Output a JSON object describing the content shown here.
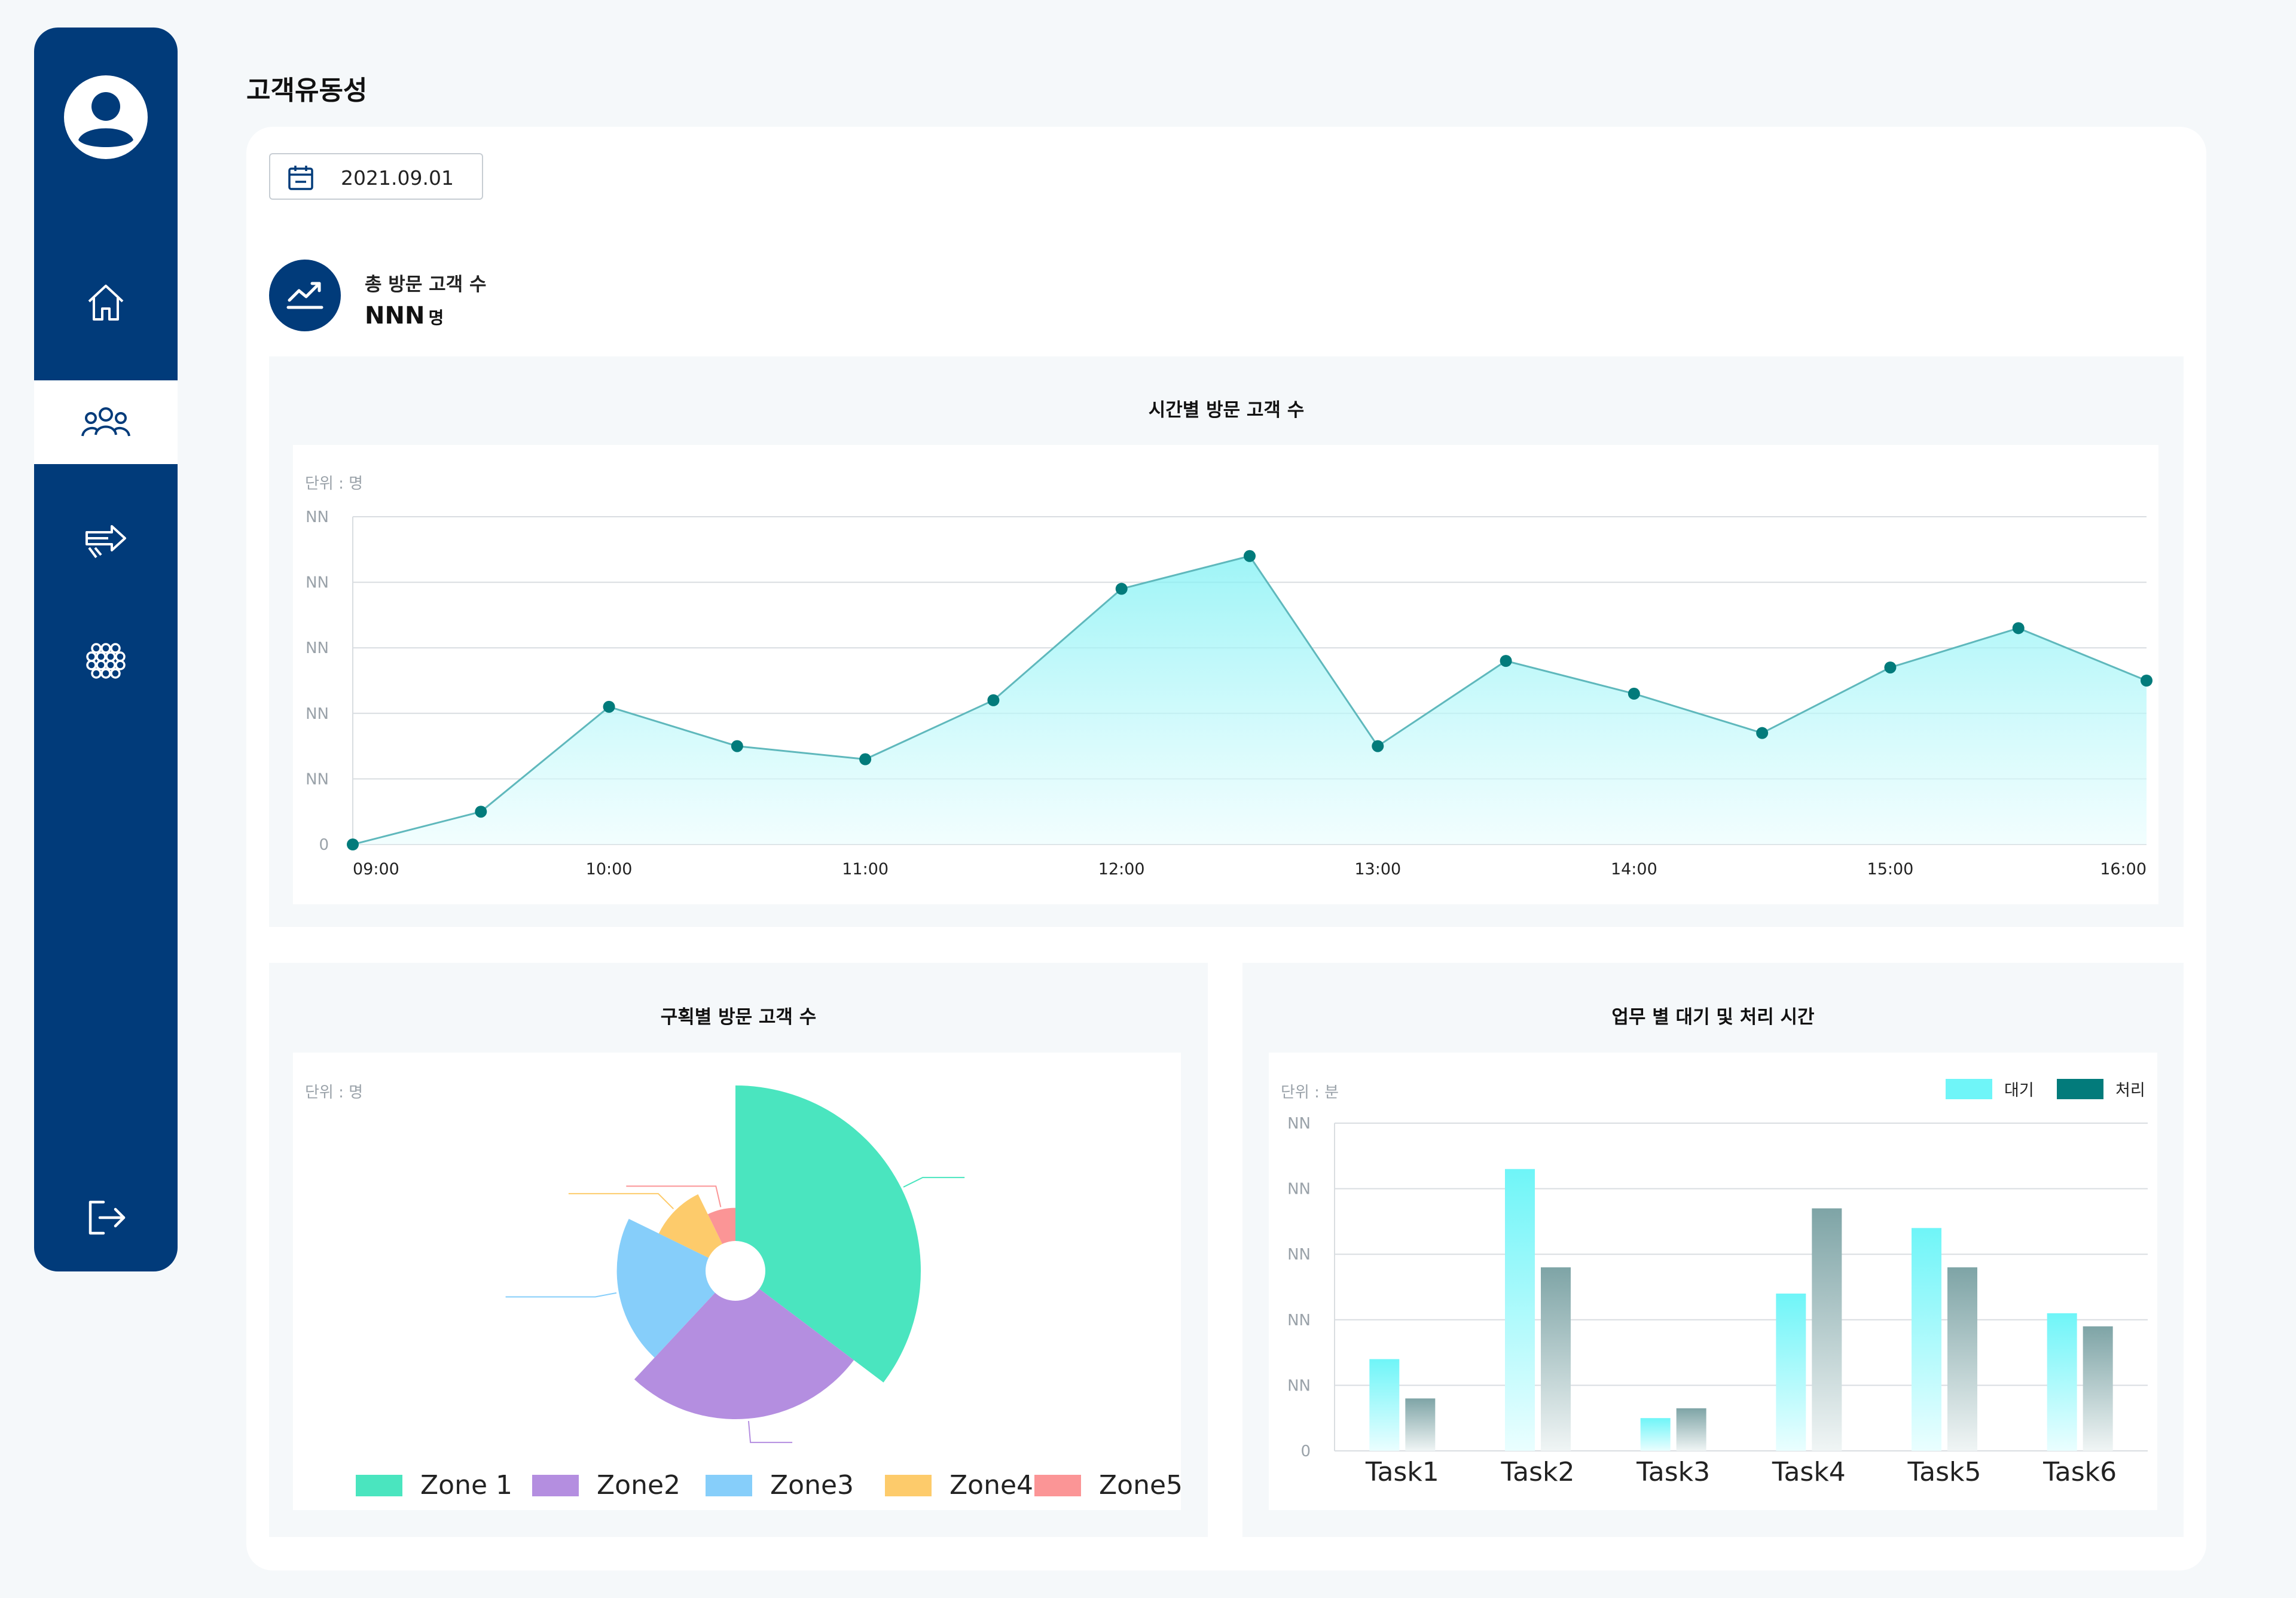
{
  "page": {
    "title": "고객유동성"
  },
  "date": {
    "value": "2021.09.01"
  },
  "summary": {
    "label": "총 방문 고객 수",
    "value": "NNN",
    "unit": "명"
  },
  "colors": {
    "navy": "#013b7a",
    "teal": "#027b7b",
    "cyan": "#6ff5f8"
  },
  "sidebar": {
    "items": [
      {
        "icon": "home-icon",
        "active": false
      },
      {
        "icon": "people-icon",
        "active": true
      },
      {
        "icon": "arrows-icon",
        "active": false
      },
      {
        "icon": "cells-icon",
        "active": false
      },
      {
        "icon": "logout-icon",
        "active": false
      }
    ]
  },
  "line_panel": {
    "title": "시간별 방문 고객 수",
    "unit": "단위 : 명"
  },
  "pie_panel": {
    "title": "구획별 방문 고객 수",
    "unit": "단위 : 명"
  },
  "bar_panel": {
    "title": "업무 별 대기 및 처리 시간",
    "unit": "단위 : 분"
  },
  "chart_data": [
    {
      "type": "area",
      "title": "시간별 방문 고객 수",
      "unit": "단위 : 명",
      "ytick_labels": [
        "0",
        "NN",
        "NN",
        "NN",
        "NN",
        "NN"
      ],
      "xtick_labels": [
        "09:00",
        "10:00",
        "11:00",
        "12:00",
        "13:00",
        "14:00",
        "15:00",
        "16:00"
      ],
      "x": [
        9.0,
        9.5,
        10.0,
        10.5,
        11.0,
        11.5,
        12.0,
        12.5,
        13.0,
        13.5,
        14.0,
        14.5,
        15.0,
        15.5,
        16.0
      ],
      "values": [
        0,
        0.5,
        2.1,
        1.5,
        1.3,
        2.2,
        3.9,
        4.4,
        1.5,
        2.8,
        2.3,
        1.7,
        2.7,
        3.3,
        2.5
      ],
      "ylim": [
        0,
        5
      ],
      "grid": true
    },
    {
      "type": "pie",
      "title": "구획별 방문 고객 수",
      "unit": "단위 : 명",
      "categories": [
        "Zone 1",
        "Zone2",
        "Zone3",
        "Zone4",
        "Zone5"
      ],
      "angles": [
        127,
        96,
        73,
        38,
        26
      ],
      "radii": [
        100,
        80,
        64,
        46,
        34
      ],
      "colors": [
        "#4ae5bf",
        "#b48ee0",
        "#86cefa",
        "#fdcb6b",
        "#fb9596"
      ],
      "legend": "bottom"
    },
    {
      "type": "bar",
      "title": "업무 별 대기 및 처리 시간",
      "unit": "단위 : 분",
      "categories": [
        "Task1",
        "Task2",
        "Task3",
        "Task4",
        "Task5",
        "Task6"
      ],
      "series": [
        {
          "name": "대기",
          "values": [
            1.4,
            4.3,
            0.5,
            2.4,
            3.4,
            2.1
          ]
        },
        {
          "name": "처리",
          "values": [
            0.8,
            2.8,
            0.65,
            3.7,
            2.8,
            1.9
          ]
        }
      ],
      "ytick_labels": [
        "0",
        "NN",
        "NN",
        "NN",
        "NN",
        "NN"
      ],
      "ylim": [
        0,
        5
      ],
      "legend": "top-right",
      "grid": true
    }
  ]
}
